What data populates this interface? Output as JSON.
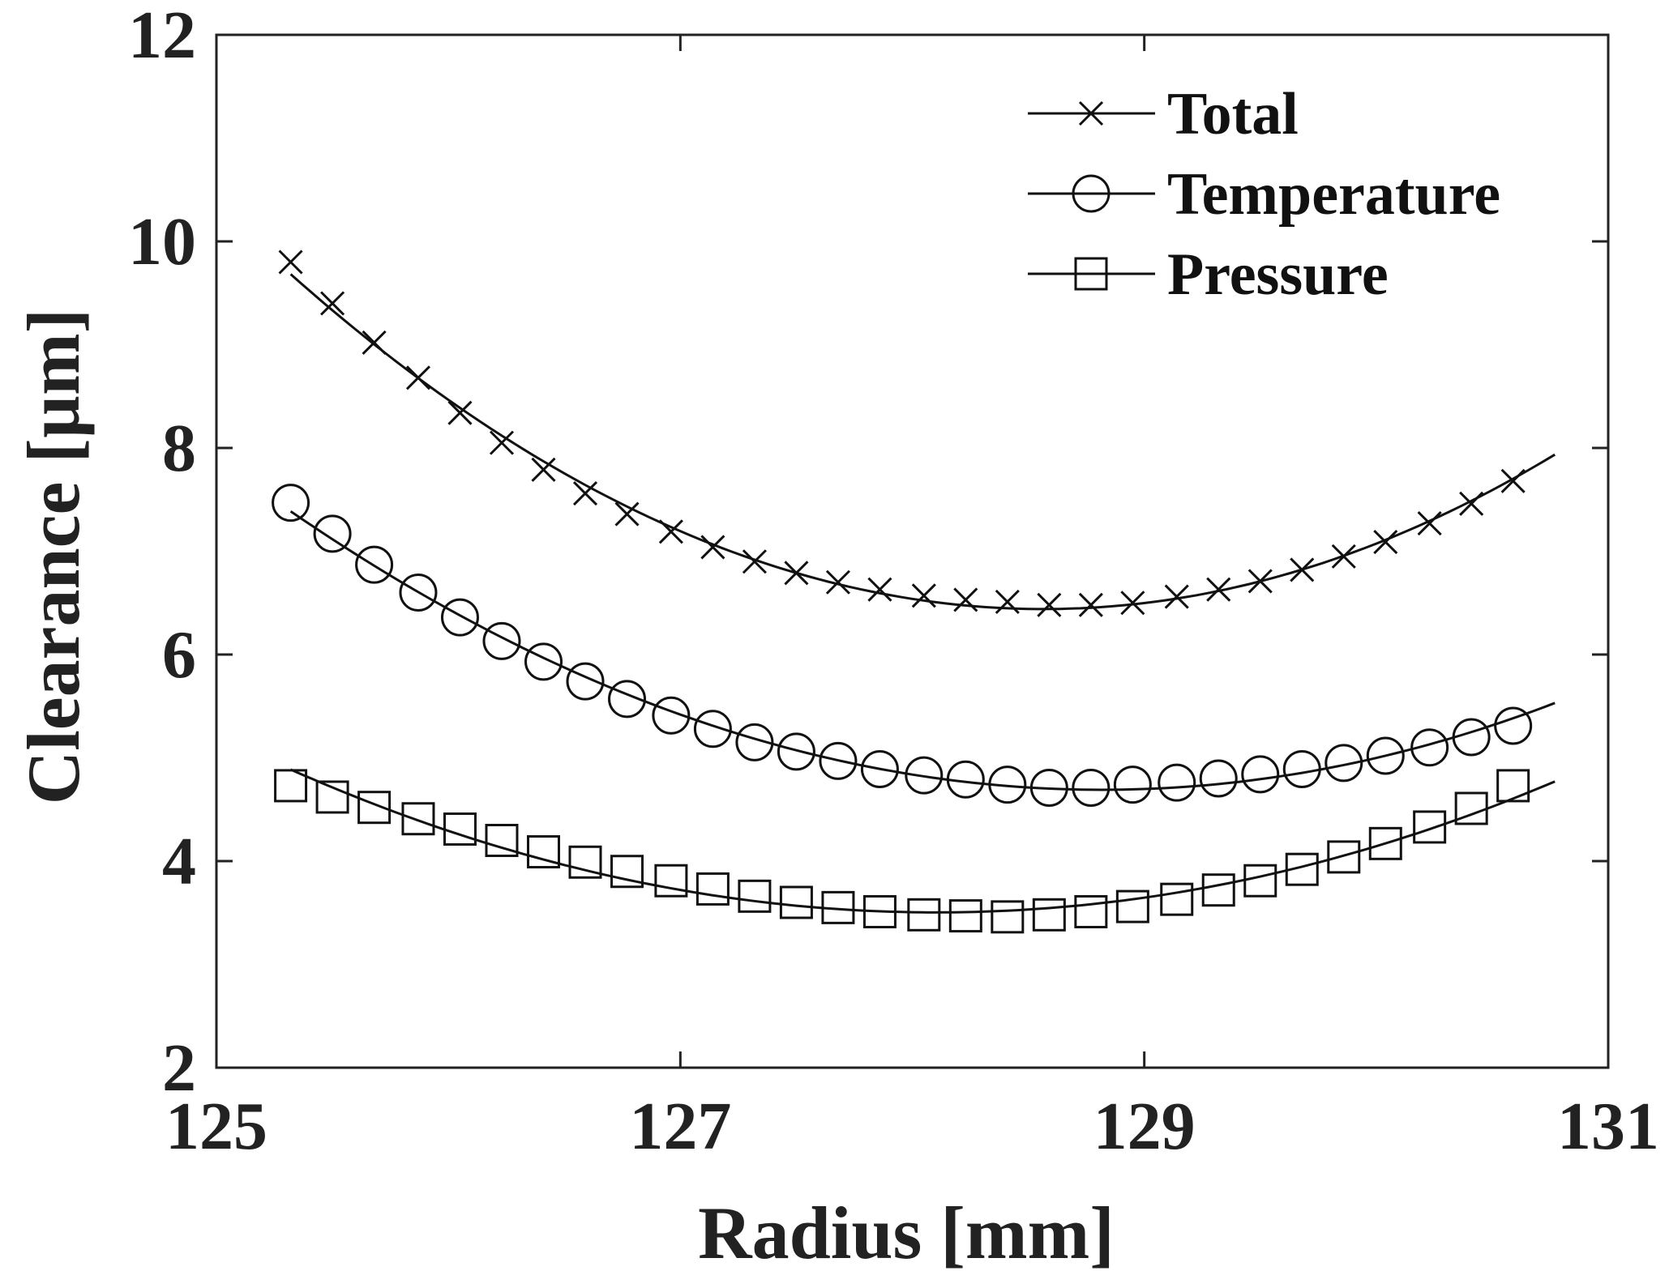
{
  "chart_data": {
    "type": "line",
    "title": "",
    "xlabel": "Radius [mm]",
    "ylabel": "Clearance [µm]",
    "xlim": [
      125,
      131
    ],
    "ylim": [
      2,
      12
    ],
    "xticks": [
      125,
      127,
      129,
      131
    ],
    "yticks": [
      2,
      4,
      6,
      8,
      10,
      12
    ],
    "grid": false,
    "legend_position": "top-right",
    "line_color": "#111111",
    "x": [
      125.32,
      125.5,
      125.68,
      125.87,
      126.05,
      126.23,
      126.41,
      126.59,
      126.77,
      126.96,
      127.14,
      127.32,
      127.5,
      127.68,
      127.86,
      128.05,
      128.23,
      128.41,
      128.59,
      128.77,
      128.95,
      129.14,
      129.32,
      129.5,
      129.68,
      129.86,
      130.04,
      130.23,
      130.41,
      130.59
    ],
    "series": [
      {
        "name": "Total",
        "marker": "x",
        "values": [
          9.8,
          9.4,
          9.02,
          8.68,
          8.34,
          8.05,
          7.79,
          7.56,
          7.36,
          7.19,
          7.04,
          6.9,
          6.79,
          6.7,
          6.63,
          6.57,
          6.53,
          6.51,
          6.48,
          6.48,
          6.5,
          6.56,
          6.63,
          6.71,
          6.82,
          6.95,
          7.09,
          7.27,
          7.46,
          7.68
        ]
      },
      {
        "name": "Temperature",
        "marker": "circle",
        "values": [
          7.47,
          7.17,
          6.87,
          6.6,
          6.36,
          6.13,
          5.93,
          5.74,
          5.57,
          5.41,
          5.28,
          5.15,
          5.06,
          4.97,
          4.89,
          4.83,
          4.79,
          4.74,
          4.71,
          4.71,
          4.74,
          4.76,
          4.8,
          4.84,
          4.89,
          4.95,
          5.02,
          5.1,
          5.2,
          5.31
        ]
      },
      {
        "name": "Pressure",
        "marker": "square",
        "values": [
          4.73,
          4.62,
          4.52,
          4.41,
          4.31,
          4.2,
          4.09,
          3.99,
          3.9,
          3.81,
          3.73,
          3.66,
          3.6,
          3.55,
          3.51,
          3.48,
          3.47,
          3.46,
          3.48,
          3.51,
          3.56,
          3.63,
          3.72,
          3.81,
          3.92,
          4.04,
          4.17,
          4.33,
          4.51,
          4.73
        ]
      }
    ]
  }
}
